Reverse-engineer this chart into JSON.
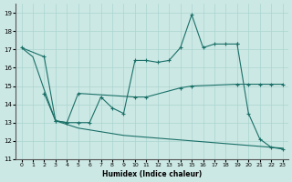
{
  "bg_color": "#cce8e4",
  "grid_color": "#aad4d0",
  "line_color": "#1a7068",
  "xlabel": "Humidex (Indice chaleur)",
  "ylim": [
    11,
    19.5
  ],
  "yticks": [
    11,
    12,
    13,
    14,
    15,
    16,
    17,
    18,
    19
  ],
  "xlim": [
    -0.5,
    23.5
  ],
  "xticks": [
    0,
    1,
    2,
    3,
    4,
    5,
    6,
    7,
    8,
    9,
    10,
    11,
    12,
    13,
    14,
    15,
    16,
    17,
    18,
    19,
    20,
    21,
    22,
    23
  ],
  "curve1_x": [
    0,
    2,
    3,
    4,
    5,
    10,
    11,
    14,
    15,
    19,
    20,
    21,
    22,
    23
  ],
  "curve1_y": [
    17.1,
    16.6,
    13.1,
    13.0,
    14.6,
    14.4,
    14.4,
    14.9,
    15.0,
    15.1,
    15.1,
    15.1,
    15.1,
    15.1
  ],
  "curve2_x": [
    2,
    3,
    4,
    5,
    6,
    7,
    8,
    9,
    10,
    11,
    12,
    13,
    14,
    15,
    16,
    17,
    18,
    19
  ],
  "curve2_y": [
    14.6,
    13.1,
    13.0,
    13.0,
    13.0,
    14.4,
    13.8,
    13.5,
    16.4,
    16.4,
    16.3,
    16.4,
    17.1,
    18.9,
    17.1,
    17.3,
    17.3,
    17.3
  ],
  "curve3_x": [
    0,
    1,
    2,
    3,
    4,
    5,
    6,
    7,
    8,
    9,
    10,
    11,
    12,
    13,
    14,
    15,
    16,
    17,
    18,
    19,
    20,
    21,
    22,
    23
  ],
  "curve3_y": [
    17.1,
    16.6,
    14.8,
    13.1,
    12.9,
    12.7,
    12.6,
    12.5,
    12.4,
    12.3,
    12.25,
    12.2,
    12.15,
    12.1,
    12.05,
    12.0,
    11.95,
    11.9,
    11.85,
    11.8,
    11.75,
    11.7,
    11.65,
    11.6
  ],
  "curve4_x": [
    19,
    20,
    21,
    22,
    23
  ],
  "curve4_y": [
    17.3,
    13.5,
    12.1,
    11.65,
    11.55
  ]
}
